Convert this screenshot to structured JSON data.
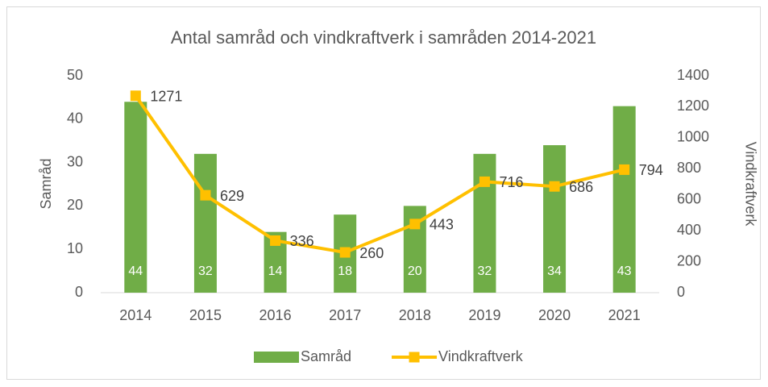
{
  "chart_data": {
    "type": "combo",
    "title": "Antal samråd och vindkraftverk i samråden 2014-2021",
    "categories": [
      "2014",
      "2015",
      "2016",
      "2017",
      "2018",
      "2019",
      "2020",
      "2021"
    ],
    "series": [
      {
        "name": "Samråd",
        "type": "bar",
        "color": "#70ad47",
        "values": [
          44,
          32,
          14,
          18,
          20,
          32,
          34,
          43
        ]
      },
      {
        "name": "Vindkraftverk",
        "type": "line",
        "axis": "y2",
        "color": "#ffc000",
        "values": [
          1271,
          629,
          336,
          260,
          443,
          716,
          686,
          794
        ]
      }
    ],
    "ylabel": "Samråd",
    "y2label": "Vindkraftverk",
    "ylim": [
      0,
      50
    ],
    "yticks": [
      0,
      10,
      20,
      30,
      40,
      50
    ],
    "y2lim": [
      0,
      1400
    ],
    "y2ticks": [
      0,
      200,
      400,
      600,
      800,
      1000,
      1200,
      1400
    ],
    "legend": "bottom"
  }
}
